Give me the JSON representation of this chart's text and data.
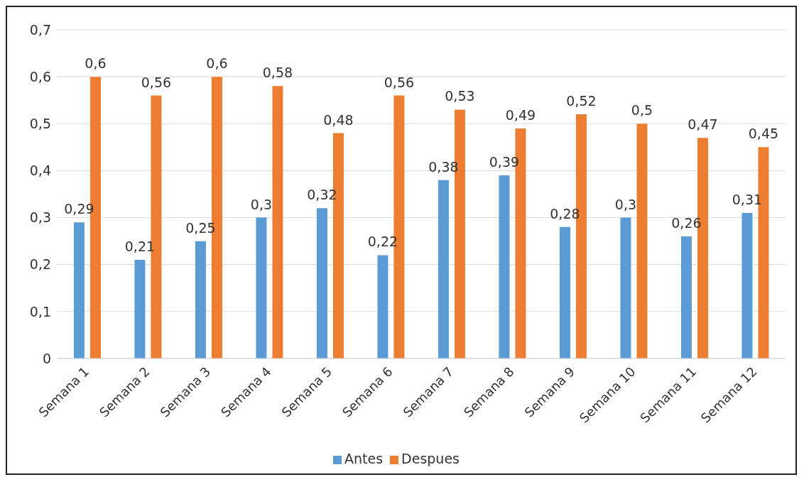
{
  "chart_data": {
    "type": "bar",
    "categories": [
      "Semana 1",
      "Semana 2",
      "Semana 3",
      "Semana 4",
      "Semana 5",
      "Semana 6",
      "Semana 7",
      "Semana 8",
      "Semana 9",
      "Semana 10",
      "Semana 11",
      "Semana 12"
    ],
    "series": [
      {
        "name": "Antes",
        "color": "#5b9bd5",
        "values": [
          0.29,
          0.21,
          0.25,
          0.3,
          0.32,
          0.22,
          0.38,
          0.39,
          0.28,
          0.3,
          0.26,
          0.31
        ],
        "value_labels": [
          "0,29",
          "0,21",
          "0,25",
          "0,3",
          "0,32",
          "0,22",
          "0,38",
          "0,39",
          "0,28",
          "0,3",
          "0,26",
          "0,31"
        ]
      },
      {
        "name": "Despues",
        "color": "#ed7d31",
        "values": [
          0.6,
          0.56,
          0.6,
          0.58,
          0.48,
          0.56,
          0.53,
          0.49,
          0.52,
          0.5,
          0.47,
          0.45
        ],
        "value_labels": [
          "0,6",
          "0,56",
          "0,6",
          "0,58",
          "0,48",
          "0,56",
          "0,53",
          "0,49",
          "0,52",
          "0,5",
          "0,47",
          "0,45"
        ]
      }
    ],
    "ylim": [
      0,
      0.7
    ],
    "yticks": [
      {
        "value": 0,
        "label": "0"
      },
      {
        "value": 0.1,
        "label": "0,1"
      },
      {
        "value": 0.2,
        "label": "0,2"
      },
      {
        "value": 0.3,
        "label": "0,3"
      },
      {
        "value": 0.4,
        "label": "0,4"
      },
      {
        "value": 0.5,
        "label": "0,5"
      },
      {
        "value": 0.6,
        "label": "0,6"
      },
      {
        "value": 0.7,
        "label": "0,7"
      }
    ],
    "grid": "y",
    "legend": "bottom"
  }
}
